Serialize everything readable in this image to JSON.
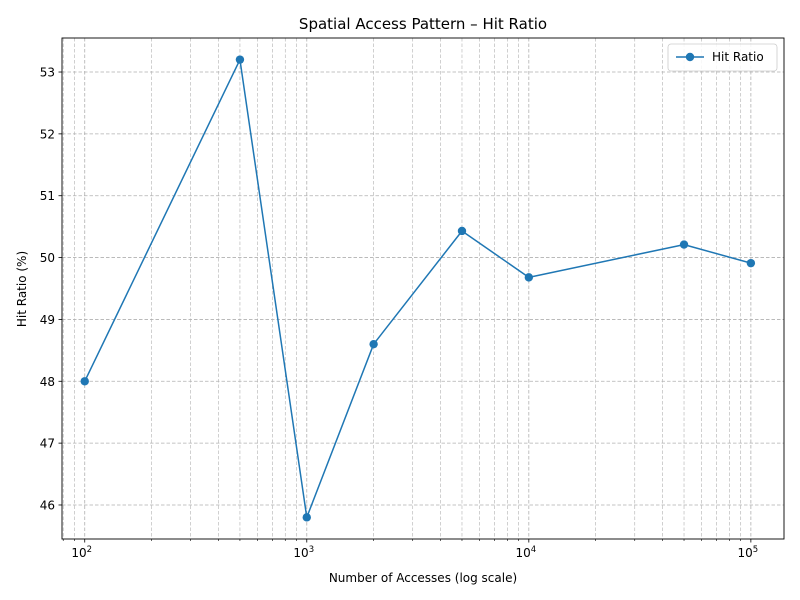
{
  "chart_data": {
    "type": "line",
    "title": "Spatial Access Pattern – Hit Ratio",
    "xlabel": "Number of Accesses (log scale)",
    "ylabel": "Hit Ratio (%)",
    "x_scale": "log",
    "xlim": [
      79,
      141000
    ],
    "ylim": [
      45.45,
      53.55
    ],
    "x_ticks": [
      {
        "value": 100,
        "base": "10",
        "exp": "2"
      },
      {
        "value": 1000,
        "base": "10",
        "exp": "3"
      },
      {
        "value": 10000,
        "base": "10",
        "exp": "4"
      },
      {
        "value": 100000,
        "base": "10",
        "exp": "5"
      }
    ],
    "y_ticks": [
      46,
      47,
      48,
      49,
      50,
      51,
      52,
      53
    ],
    "grid": true,
    "grid_minor": true,
    "legend_position": "upper right",
    "series": [
      {
        "name": "Hit Ratio",
        "color": "#1f77b4",
        "marker": "circle",
        "x": [
          100,
          500,
          1000,
          2000,
          5000,
          10000,
          50000,
          100000
        ],
        "y": [
          48.0,
          53.2,
          45.8,
          48.6,
          50.43,
          49.68,
          50.21,
          49.91
        ]
      }
    ]
  }
}
